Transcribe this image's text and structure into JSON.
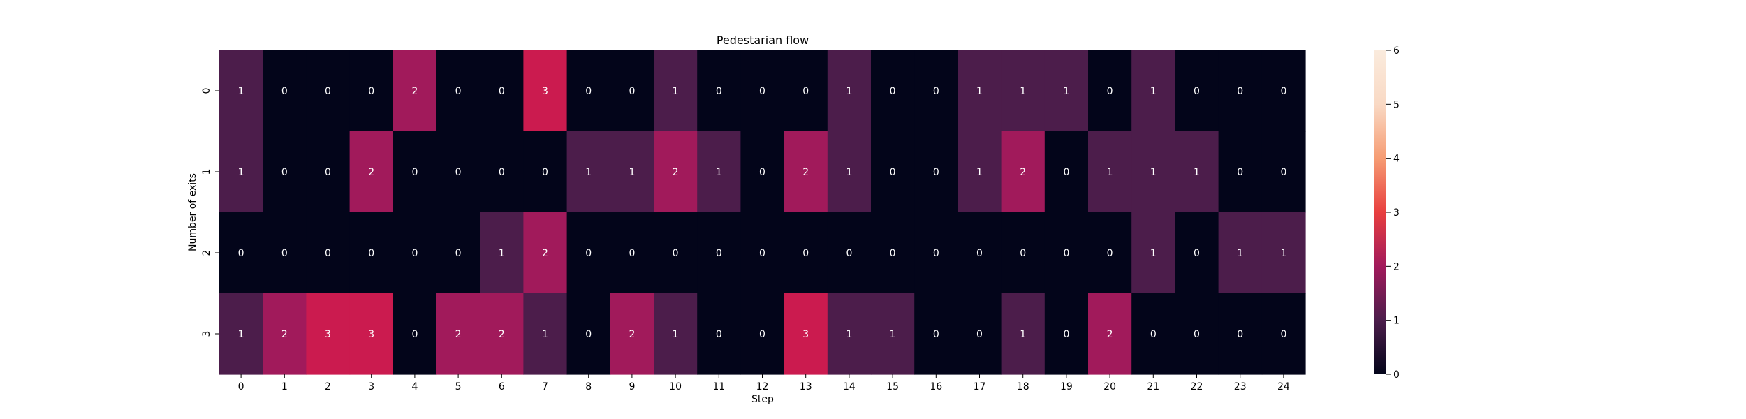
{
  "chart_data": {
    "type": "heatmap",
    "title": "Pedestarian flow",
    "xlabel": "Step",
    "ylabel": "Number of exits",
    "x_categories": [
      "0",
      "1",
      "2",
      "3",
      "4",
      "5",
      "6",
      "7",
      "8",
      "9",
      "10",
      "11",
      "12",
      "13",
      "14",
      "15",
      "16",
      "17",
      "18",
      "19",
      "20",
      "21",
      "22",
      "23",
      "24"
    ],
    "y_categories": [
      "0",
      "1",
      "2",
      "3"
    ],
    "values": [
      [
        1,
        0,
        0,
        0,
        2,
        0,
        0,
        3,
        0,
        0,
        1,
        0,
        0,
        0,
        1,
        0,
        0,
        1,
        1,
        1,
        0,
        1,
        0,
        0,
        0
      ],
      [
        1,
        0,
        0,
        2,
        0,
        0,
        0,
        0,
        1,
        1,
        2,
        1,
        0,
        2,
        1,
        0,
        0,
        1,
        2,
        0,
        1,
        1,
        1,
        0,
        0
      ],
      [
        0,
        0,
        0,
        0,
        0,
        0,
        1,
        2,
        0,
        0,
        0,
        0,
        0,
        0,
        0,
        0,
        0,
        0,
        0,
        0,
        0,
        1,
        0,
        1,
        1
      ],
      [
        1,
        2,
        3,
        3,
        0,
        2,
        2,
        1,
        0,
        2,
        1,
        0,
        0,
        3,
        1,
        1,
        0,
        0,
        1,
        0,
        2,
        0,
        0,
        0,
        0
      ]
    ],
    "colorbar": {
      "min": 0,
      "max": 6,
      "ticks": [
        "0",
        "1",
        "2",
        "3",
        "4",
        "5",
        "6"
      ],
      "colormap": "rocket"
    },
    "annotated": true,
    "grid": false
  }
}
